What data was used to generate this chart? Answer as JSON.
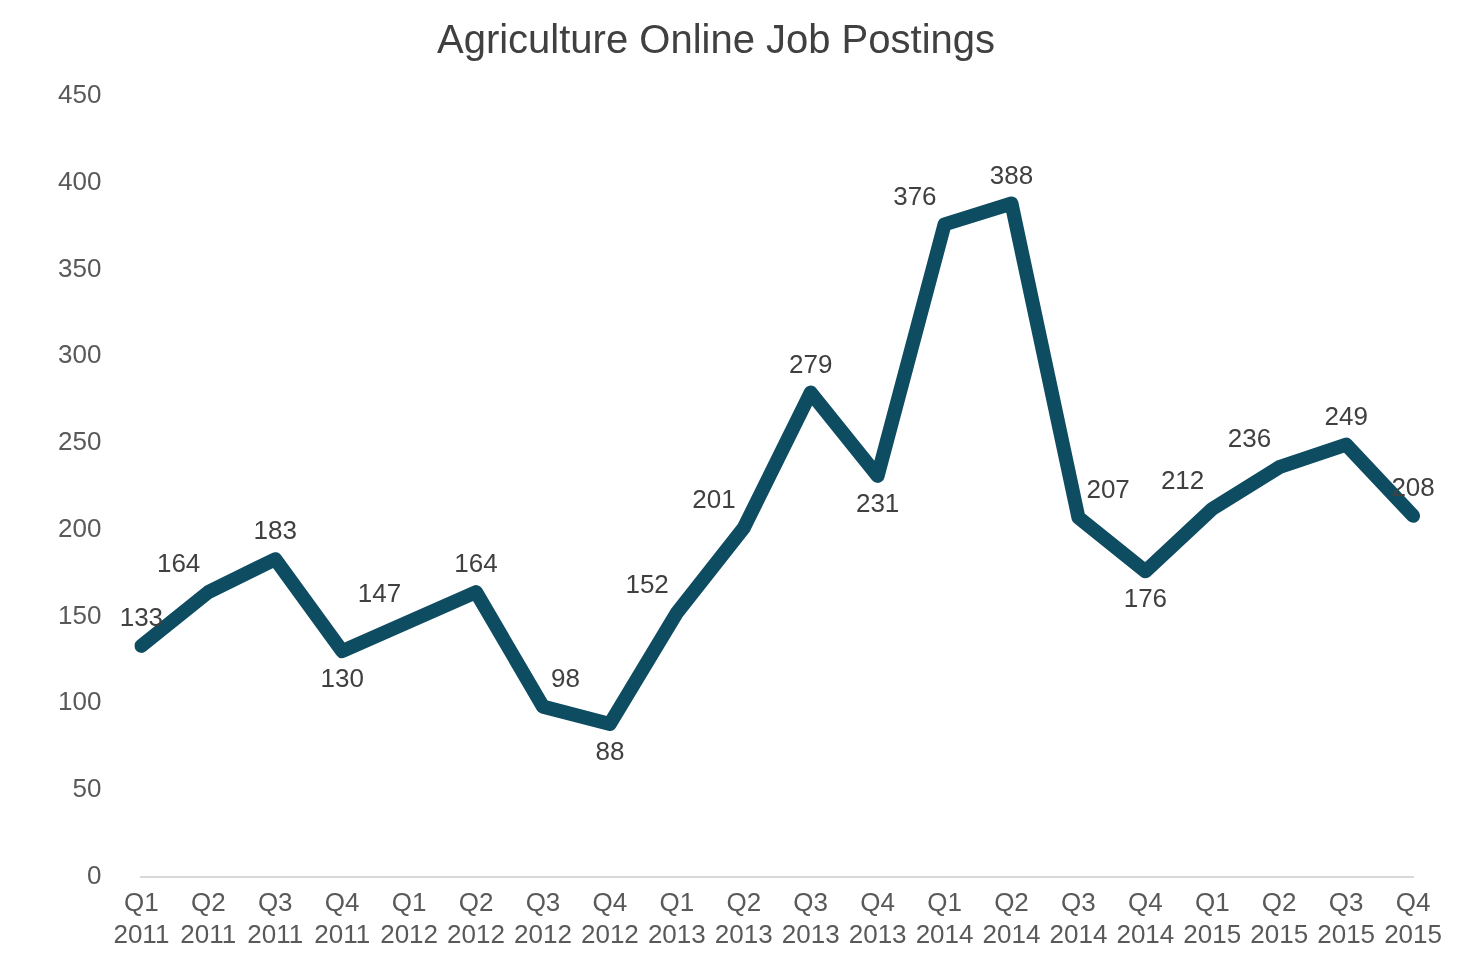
{
  "chart_data": {
    "type": "line",
    "title": "Agriculture Online Job Postings",
    "categories": [
      "Q1 2011",
      "Q2 2011",
      "Q3 2011",
      "Q4 2011",
      "Q1 2012",
      "Q2 2012",
      "Q3 2012",
      "Q4 2012",
      "Q1 2013",
      "Q2 2013",
      "Q3 2013",
      "Q4 2013",
      "Q1 2014",
      "Q2 2014",
      "Q3 2014",
      "Q4 2014",
      "Q1 2015",
      "Q2 2015",
      "Q3 2015",
      "Q4 2015"
    ],
    "series": [
      {
        "color": "#0e4c61",
        "values": [
          133,
          164,
          183,
          130,
          147,
          164,
          98,
          88,
          152,
          201,
          279,
          231,
          376,
          388,
          207,
          176,
          212,
          236,
          249,
          208
        ]
      }
    ],
    "ylim": [
      0,
      450
    ],
    "yticks": [
      0,
      50,
      100,
      150,
      200,
      250,
      300,
      350,
      400,
      450
    ],
    "grid": false,
    "legend": false,
    "marker": "none",
    "line_style": "solid",
    "data_labels": true
  }
}
